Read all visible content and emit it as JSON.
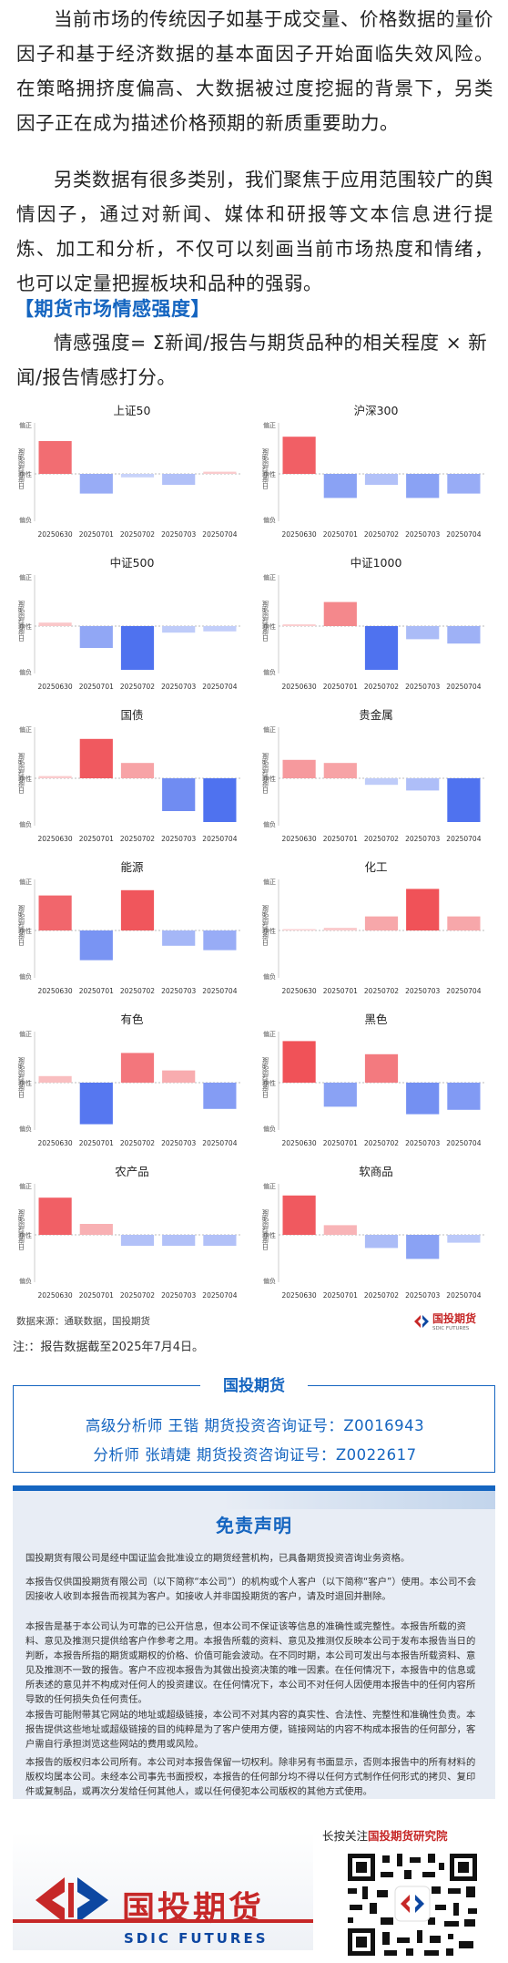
{
  "intro": {
    "p1": "当前市场的传统因子如基于成交量、价格数据的量价因子和基于经济数据的基本面因子开始面临失效风险。在策略拥挤度偏高、大数据被过度挖掘的背景下，另类因子正在成为描述价格预期的新质重要助力。",
    "p2": "另类数据有很多类别，我们聚焦于应用范围较广的舆情因子，通过对新闻、媒体和研报等文本信息进行提炼、加工和分析，不仅可以刻画当前市场热度和情绪，也可以定量把握板块和品种的强弱。"
  },
  "section_title": "【期货市场情感强度】",
  "formula": "情感强度= Σ新闻/报告与期货品种的相关程度 × 新闻/报告情感打分。",
  "chart_data": [
    {
      "type": "bar",
      "title": "上证50",
      "ylabel": "日度情感强度",
      "y_ticks": [
        "偏正",
        "中性",
        "偏负"
      ],
      "categories": [
        "20250630",
        "20250701",
        "20250702",
        "20250703",
        "20250704"
      ],
      "values": [
        0.75,
        -0.45,
        -0.08,
        -0.25,
        0.05
      ],
      "ylim": [
        -1,
        1
      ]
    },
    {
      "type": "bar",
      "title": "沪深300",
      "ylabel": "日度情感强度",
      "y_ticks": [
        "偏正",
        "中性",
        "偏负"
      ],
      "categories": [
        "20250630",
        "20250701",
        "20250702",
        "20250703",
        "20250704"
      ],
      "values": [
        0.85,
        -0.55,
        -0.25,
        -0.55,
        -0.45
      ],
      "ylim": [
        -1,
        1
      ]
    },
    {
      "type": "bar",
      "title": "中证500",
      "ylabel": "日度情感强度",
      "y_ticks": [
        "偏正",
        "中性",
        "偏负"
      ],
      "categories": [
        "20250630",
        "20250701",
        "20250702",
        "20250703",
        "20250704"
      ],
      "values": [
        0.08,
        -0.5,
        -1.0,
        -0.15,
        -0.12
      ],
      "ylim": [
        -1,
        1
      ]
    },
    {
      "type": "bar",
      "title": "中证1000",
      "ylabel": "日度情感强度",
      "y_ticks": [
        "偏正",
        "中性",
        "偏负"
      ],
      "categories": [
        "20250630",
        "20250701",
        "20250702",
        "20250703",
        "20250704"
      ],
      "values": [
        0.04,
        0.55,
        -1.0,
        -0.3,
        -0.4
      ],
      "ylim": [
        -1,
        1
      ]
    },
    {
      "type": "bar",
      "title": "国债",
      "ylabel": "日度情感强度",
      "y_ticks": [
        "偏正",
        "中性",
        "偏负"
      ],
      "categories": [
        "20250630",
        "20250701",
        "20250702",
        "20250703",
        "20250704"
      ],
      "values": [
        0.05,
        0.9,
        0.35,
        -0.75,
        -1.0
      ],
      "ylim": [
        -1,
        1
      ]
    },
    {
      "type": "bar",
      "title": "贵金属",
      "ylabel": "日度情感强度",
      "y_ticks": [
        "偏正",
        "中性",
        "偏负"
      ],
      "categories": [
        "20250630",
        "20250701",
        "20250702",
        "20250703",
        "20250704"
      ],
      "values": [
        0.42,
        0.35,
        -0.15,
        -0.28,
        -1.0
      ],
      "ylim": [
        -1,
        1
      ]
    },
    {
      "type": "bar",
      "title": "能源",
      "ylabel": "日度情感强度",
      "y_ticks": [
        "偏正",
        "中性",
        "偏负"
      ],
      "categories": [
        "20250630",
        "20250701",
        "20250702",
        "20250703",
        "20250704"
      ],
      "values": [
        0.8,
        -0.68,
        0.92,
        -0.35,
        -0.45
      ],
      "ylim": [
        -1,
        1
      ]
    },
    {
      "type": "bar",
      "title": "化工",
      "ylabel": "日度情感强度",
      "y_ticks": [
        "偏正",
        "中性",
        "偏负"
      ],
      "categories": [
        "20250630",
        "20250701",
        "20250702",
        "20250703",
        "20250704"
      ],
      "values": [
        0.0,
        0.06,
        0.32,
        0.95,
        0.32
      ],
      "ylim": [
        -1,
        1
      ]
    },
    {
      "type": "bar",
      "title": "有色",
      "ylabel": "日度情感强度",
      "y_ticks": [
        "偏正",
        "中性",
        "偏负"
      ],
      "categories": [
        "20250630",
        "20250701",
        "20250702",
        "20250703",
        "20250704"
      ],
      "values": [
        0.15,
        -0.95,
        0.68,
        0.28,
        -0.6
      ],
      "ylim": [
        -1,
        1
      ]
    },
    {
      "type": "bar",
      "title": "黑色",
      "ylabel": "日度情感强度",
      "y_ticks": [
        "偏正",
        "中性",
        "偏负"
      ],
      "categories": [
        "20250630",
        "20250701",
        "20250702",
        "20250703",
        "20250704"
      ],
      "values": [
        0.95,
        -0.55,
        0.65,
        -0.72,
        -0.62
      ],
      "ylim": [
        -1,
        1
      ]
    },
    {
      "type": "bar",
      "title": "农产品",
      "ylabel": "日度情感强度",
      "y_ticks": [
        "偏正",
        "中性",
        "偏负"
      ],
      "categories": [
        "20250630",
        "20250701",
        "20250702",
        "20250703",
        "20250704"
      ],
      "values": [
        0.85,
        0.25,
        -0.25,
        -0.25,
        -0.25
      ],
      "ylim": [
        -1,
        1
      ]
    },
    {
      "type": "bar",
      "title": "软商品",
      "ylabel": "日度情感强度",
      "y_ticks": [
        "偏正",
        "中性",
        "偏负"
      ],
      "categories": [
        "20250630",
        "20250701",
        "20250702",
        "20250703",
        "20250704"
      ],
      "values": [
        0.9,
        0.22,
        -0.3,
        -0.55,
        -0.18
      ],
      "ylim": [
        -1,
        1
      ]
    }
  ],
  "chart_colors": {
    "positive": "#ef4b52",
    "negative": "#4f72ef",
    "axis": "#cccccc"
  },
  "source": "数据来源：通联数据，国投期货",
  "source_logo": {
    "name": "国投期货",
    "sub": "SDIC FUTURES"
  },
  "note": "注:：报告数据截至2025年7月4日。",
  "analysts": {
    "tab": "国投期货",
    "a1": "高级分析师 王锴 期货投资咨询证号：Z0016943",
    "a2": "分析师 张靖婕 期货投资咨询证号：Z0022617"
  },
  "disclaimer": {
    "title": "免责声明",
    "d1": "国投期货有限公司是经中国证监会批准设立的期货经营机构，已具备期货投资咨询业务资格。",
    "d2": "本报告仅供国投期货有限公司（以下简称“本公司”）的机构或个人客户（以下简称“客户”）使用。本公司不会因接收人收到本报告而视其为客户。如接收人并非国投期货的客户，请及时退回并删除。",
    "d3": "本报告是基于本公司认为可靠的已公开信息，但本公司不保证该等信息的准确性或完整性。本报告所载的资料、意见及推测只提供给客户作参考之用。本报告所载的资料、意见及推测仅反映本公司于发布本报告当日的判断，本报告所指的期货或期权的价格、价值可能会波动。在不同时期，本公司可发出与本报告所载资料、意见及推测不一致的报告。客户不应视本报告为其做出投资决策的唯一因素。在任何情况下，本报告中的信息或所表述的意见并不构成对任何人的投资建议。在任何情况下，本公司不对任何人因使用本报告中的任何内容所导致的任何损失负任何责任。",
    "d4": "本报告可能附带其它网站的地址或超级链接，本公司不对其内容的真实性、合法性、完整性和准确性负责。本报告提供这些地址或超级链接的目的纯粹是为了客户使用方便，链接网站的内容不构成本报告的任何部分，客户需自行承担浏览这些网站的费用或风险。",
    "d5": "本报告的版权归本公司所有。本公司对本报告保留一切权利。除非另有书面显示，否则本报告中的所有材料的版权均属本公司。未经本公司事先书面授权，本报告的任何部分均不得以任何方式制作任何形式的拷贝、复印件或复制品，或再次分发给任何其他人，或以任何侵犯本公司版权的其他方式使用。"
  },
  "footer": {
    "follow_prefix": "长按关注",
    "follow_name": "国投期货研究院",
    "logo_name": "国投期货",
    "logo_sub": "SDIC FUTURES"
  }
}
